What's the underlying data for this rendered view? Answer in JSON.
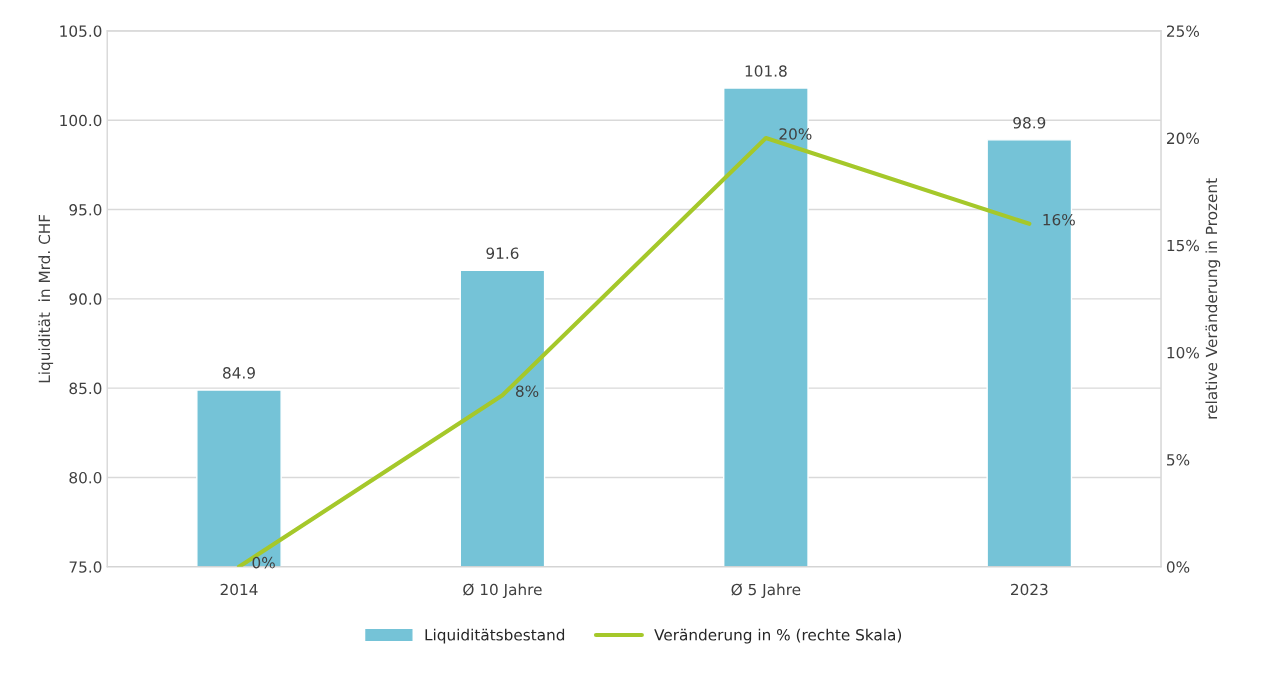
{
  "chart_data": {
    "type": "bar",
    "categories": [
      "2014",
      "Ø 10 Jahre",
      "Ø 5 Jahre",
      "2023"
    ],
    "ylabel": "Liquidität  in Mrd. CHF",
    "y2label": "relative Veränderung in Prozent",
    "series": [
      {
        "name": "Liquiditätsbestand",
        "color": "#75c3d7",
        "values": [
          84.9,
          91.6,
          101.8,
          98.9
        ]
      },
      {
        "name": "Veränderung in % (rechte Skala)",
        "type": "line",
        "axis": "y2",
        "color": "#a5c82a",
        "values": [
          0,
          8,
          20,
          16
        ],
        "value_labels": [
          "0%",
          "8%",
          "20%",
          "16%"
        ]
      }
    ],
    "data_labels": true,
    "ylim": [
      75,
      105
    ],
    "yticks": [
      {
        "value": 75,
        "label": "75.0"
      },
      {
        "value": 80,
        "label": "80.0"
      },
      {
        "value": 85,
        "label": "85.0"
      },
      {
        "value": 90,
        "label": "90.0"
      },
      {
        "value": 95,
        "label": "95.0"
      },
      {
        "value": 100,
        "label": "100.0"
      },
      {
        "value": 105,
        "label": "105.0"
      }
    ],
    "y2lim": [
      0,
      25
    ],
    "y2ticks": [
      {
        "value": 0,
        "label": "0%"
      },
      {
        "value": 5,
        "label": "5%"
      },
      {
        "value": 10,
        "label": "10%"
      },
      {
        "value": 15,
        "label": "15%"
      },
      {
        "value": 20,
        "label": "20%"
      },
      {
        "value": 25,
        "label": "25%"
      }
    ],
    "grid": "y",
    "legend": "bottom"
  }
}
